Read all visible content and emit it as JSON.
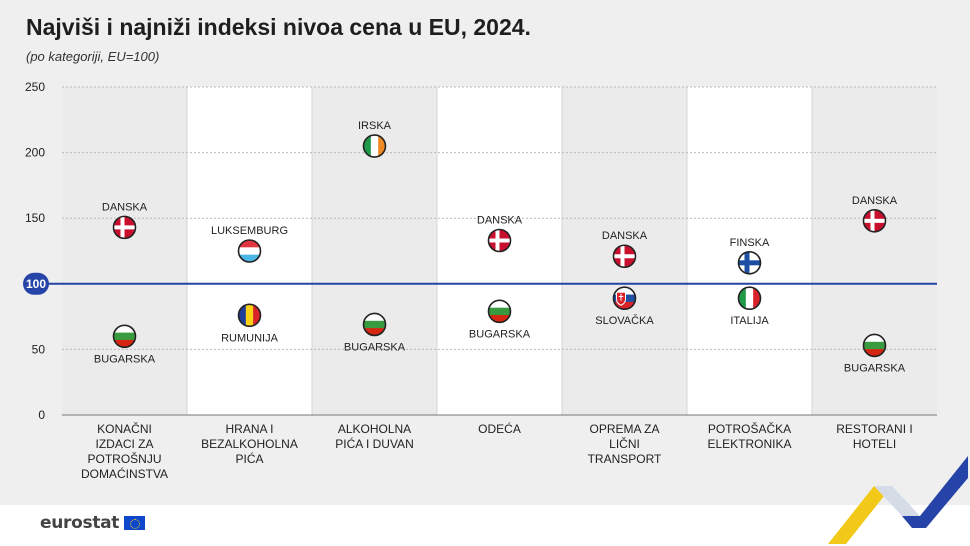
{
  "header": {
    "title": "Najviši i najniži indeksi nivoa cena u EU, 2024.",
    "subtitle": "(po kategoriji, EU=100)"
  },
  "footer": {
    "logo_text": "eurostat"
  },
  "chart_data": {
    "type": "scatter",
    "title": "Najviši i najniži indeksi nivoa cena u EU, 2024.",
    "subtitle": "(po kategoriji, EU=100)",
    "ylim": [
      0,
      250
    ],
    "yticks": [
      0,
      50,
      100,
      150,
      200,
      250
    ],
    "reference_line": {
      "value": 100,
      "label": "100",
      "color": "#2644a7"
    },
    "grid": true,
    "categories": [
      {
        "label": [
          "KONAČNI",
          "IZDACI ZA",
          "POTROŠNJU",
          "DOMAĆINSTVA"
        ],
        "high": {
          "country": "DANSKA",
          "flag": "denmark",
          "value": 143
        },
        "low": {
          "country": "BUGARSKA",
          "flag": "bulgaria",
          "value": 60
        }
      },
      {
        "label": [
          "HRANA I",
          "BEZALKOHOLNA",
          "PIĆA"
        ],
        "high": {
          "country": "LUKSEMBURG",
          "flag": "luxembourg",
          "value": 125
        },
        "low": {
          "country": "RUMUNIJA",
          "flag": "romania",
          "value": 76
        }
      },
      {
        "label": [
          "ALKOHOLNA",
          "PIĆA I DUVAN"
        ],
        "high": {
          "country": "IRSKA",
          "flag": "ireland",
          "value": 205
        },
        "low": {
          "country": "BUGARSKA",
          "flag": "bulgaria",
          "value": 69
        }
      },
      {
        "label": [
          "ODEĆA"
        ],
        "high": {
          "country": "DANSKA",
          "flag": "denmark",
          "value": 133
        },
        "low": {
          "country": "BUGARSKA",
          "flag": "bulgaria",
          "value": 79
        }
      },
      {
        "label": [
          "OPREMA ZA",
          "LIČNI",
          "TRANSPORT"
        ],
        "high": {
          "country": "DANSKA",
          "flag": "denmark",
          "value": 121
        },
        "low": {
          "country": "SLOVAČKA",
          "flag": "slovakia",
          "value": 89
        }
      },
      {
        "label": [
          "POTROŠAČKA",
          "ELEKTRONIKA"
        ],
        "high": {
          "country": "FINSKA",
          "flag": "finland",
          "value": 116
        },
        "low": {
          "country": "ITALIJA",
          "flag": "italy",
          "value": 89
        }
      },
      {
        "label": [
          "RESTORANI I",
          "HOTELI"
        ],
        "high": {
          "country": "DANSKA",
          "flag": "denmark",
          "value": 148
        },
        "low": {
          "country": "BUGARSKA",
          "flag": "bulgaria",
          "value": 53
        }
      }
    ],
    "colors": {
      "band_shaded": "#ebebeb",
      "band_plain": "#ffffff",
      "reference_line": "#2644a7"
    }
  }
}
